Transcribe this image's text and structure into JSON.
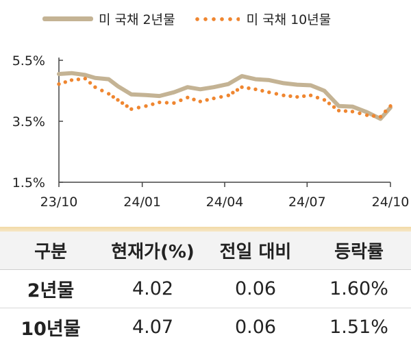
{
  "legend": {
    "series1": "미 국채 2년물",
    "series2": "미 국채 10년물"
  },
  "colors": {
    "s2y": "#c4b394",
    "s10y": "#ef8630",
    "table_bar": "#f1d9a6"
  },
  "chart_data": {
    "type": "line",
    "yticks": [
      "1.5%",
      "3.5%",
      "5.5%"
    ],
    "ylim": [
      1.5,
      5.5
    ],
    "xticks": [
      "23/10",
      "24/01",
      "24/04",
      "24/07",
      "24/10"
    ],
    "xlim": [
      "2023-10-01",
      "2024-10-01"
    ],
    "series": [
      {
        "name": "미 국채 2년물",
        "style": "solid",
        "points": [
          [
            "2023-10-01",
            5.05
          ],
          [
            "2023-10-15",
            5.08
          ],
          [
            "2023-10-30",
            5.02
          ],
          [
            "2023-11-10",
            4.92
          ],
          [
            "2023-11-25",
            4.88
          ],
          [
            "2023-12-05",
            4.65
          ],
          [
            "2023-12-20",
            4.38
          ],
          [
            "2024-01-05",
            4.36
          ],
          [
            "2024-01-20",
            4.33
          ],
          [
            "2024-02-05",
            4.45
          ],
          [
            "2024-02-20",
            4.62
          ],
          [
            "2024-03-05",
            4.55
          ],
          [
            "2024-03-20",
            4.62
          ],
          [
            "2024-04-05",
            4.72
          ],
          [
            "2024-04-20",
            4.98
          ],
          [
            "2024-05-05",
            4.88
          ],
          [
            "2024-05-20",
            4.85
          ],
          [
            "2024-06-05",
            4.75
          ],
          [
            "2024-06-20",
            4.7
          ],
          [
            "2024-07-05",
            4.68
          ],
          [
            "2024-07-20",
            4.5
          ],
          [
            "2024-08-05",
            4.0
          ],
          [
            "2024-08-20",
            3.98
          ],
          [
            "2024-09-05",
            3.8
          ],
          [
            "2024-09-20",
            3.58
          ],
          [
            "2024-10-01",
            3.95
          ]
        ]
      },
      {
        "name": "미 국채 10년물",
        "style": "dotted",
        "points": [
          [
            "2023-10-01",
            4.72
          ],
          [
            "2023-10-15",
            4.85
          ],
          [
            "2023-10-30",
            4.9
          ],
          [
            "2023-11-10",
            4.62
          ],
          [
            "2023-11-25",
            4.4
          ],
          [
            "2023-12-05",
            4.2
          ],
          [
            "2023-12-20",
            3.9
          ],
          [
            "2024-01-05",
            4.0
          ],
          [
            "2024-01-20",
            4.12
          ],
          [
            "2024-02-05",
            4.1
          ],
          [
            "2024-02-20",
            4.28
          ],
          [
            "2024-03-05",
            4.15
          ],
          [
            "2024-03-20",
            4.25
          ],
          [
            "2024-04-05",
            4.35
          ],
          [
            "2024-04-20",
            4.62
          ],
          [
            "2024-05-05",
            4.55
          ],
          [
            "2024-05-20",
            4.45
          ],
          [
            "2024-06-05",
            4.35
          ],
          [
            "2024-06-20",
            4.3
          ],
          [
            "2024-07-05",
            4.35
          ],
          [
            "2024-07-20",
            4.2
          ],
          [
            "2024-08-05",
            3.85
          ],
          [
            "2024-08-20",
            3.82
          ],
          [
            "2024-09-05",
            3.7
          ],
          [
            "2024-09-20",
            3.65
          ],
          [
            "2024-10-01",
            4.0
          ]
        ]
      }
    ]
  },
  "table": {
    "headers": [
      "구분",
      "현재가(%)",
      "전일 대비",
      "등락률"
    ],
    "rows": [
      [
        "2년물",
        "4.02",
        "0.06",
        "1.60%"
      ],
      [
        "10년물",
        "4.07",
        "0.06",
        "1.51%"
      ]
    ]
  }
}
